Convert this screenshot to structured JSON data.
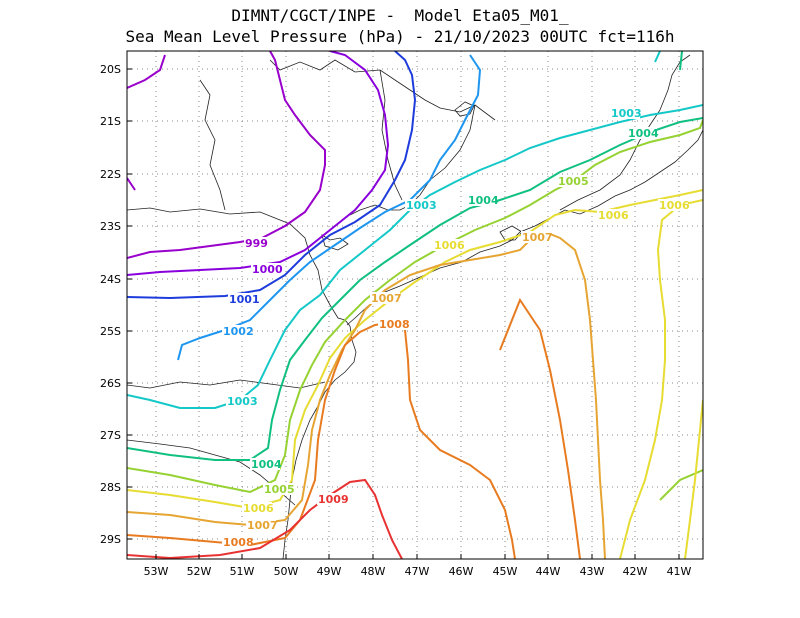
{
  "header": {
    "line1": "DIMNT/CGCT/INPE -  Model Eta05_M01_",
    "line2": "Sea Mean Level Pressure (hPa) - 21/10/2023 00UTC fct=116h"
  },
  "axes": {
    "lat_ticks": [
      "20S",
      "21S",
      "22S",
      "23S",
      "24S",
      "25S",
      "26S",
      "27S",
      "28S",
      "29S"
    ],
    "lon_ticks": [
      "53W",
      "52W",
      "51W",
      "50W",
      "49W",
      "48W",
      "47W",
      "46W",
      "45W",
      "44W",
      "43W",
      "42W",
      "41W"
    ],
    "grid": "dotted"
  },
  "contour_labels": [
    {
      "text": "999",
      "color": "#9900cc"
    },
    {
      "text": "1000",
      "color": "#8a00dd"
    },
    {
      "text": "1001",
      "color": "#1e3cdc"
    },
    {
      "text": "1002",
      "color": "#1e96f0"
    },
    {
      "text": "1003",
      "color": "#14c8c8"
    },
    {
      "text": "1003",
      "color": "#14c8c8"
    },
    {
      "text": "1003",
      "color": "#14c8c8"
    },
    {
      "text": "1004",
      "color": "#10c080"
    },
    {
      "text": "1004",
      "color": "#10c080"
    },
    {
      "text": "1004",
      "color": "#10c080"
    },
    {
      "text": "1005",
      "color": "#96d232"
    },
    {
      "text": "1005",
      "color": "#96d232"
    },
    {
      "text": "1006",
      "color": "#e6dc32"
    },
    {
      "text": "1006",
      "color": "#e6dc32"
    },
    {
      "text": "1006",
      "color": "#e6dc32"
    },
    {
      "text": "1006",
      "color": "#e6dc32"
    },
    {
      "text": "1007",
      "color": "#e6a532"
    },
    {
      "text": "1007",
      "color": "#e6a532"
    },
    {
      "text": "1007",
      "color": "#e6a532"
    },
    {
      "text": "1008",
      "color": "#e87b20"
    },
    {
      "text": "1008",
      "color": "#e87b20"
    },
    {
      "text": "1009",
      "color": "#e83232"
    }
  ]
}
